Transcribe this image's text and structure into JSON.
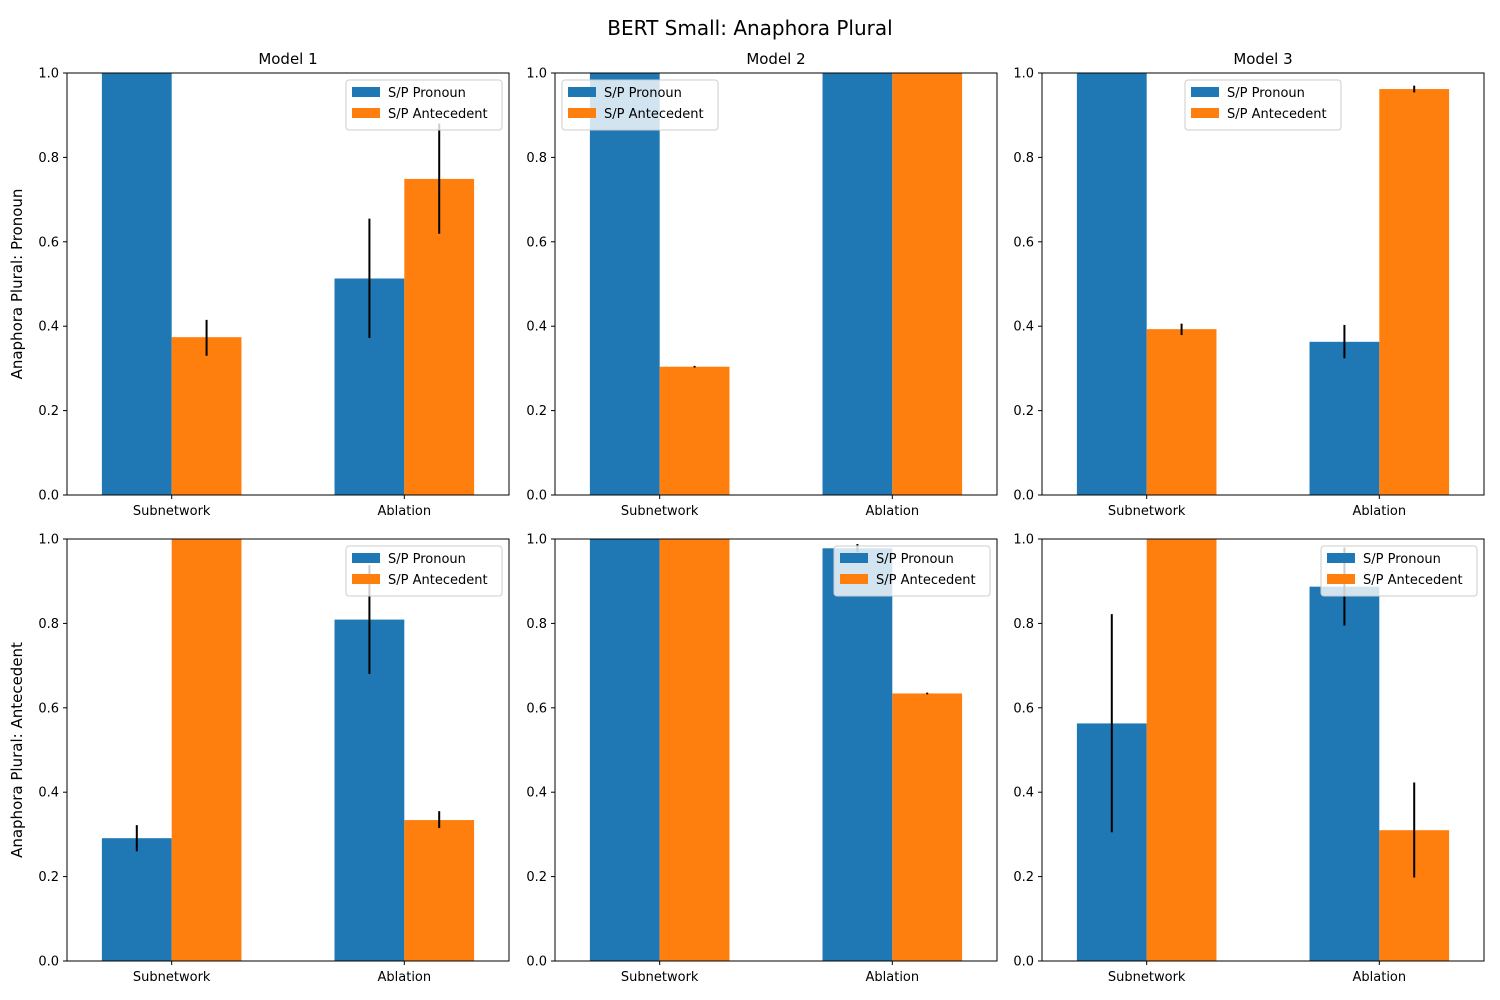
{
  "suptitle": "BERT Small: Anaphora Plural",
  "colors": {
    "pronoun": "#1f77b4",
    "antecedent": "#ff7f0e",
    "error": "#000000"
  },
  "chart_data": [
    {
      "type": "bar",
      "title": "Model 1",
      "ylabel": "Anaphora Plural: Pronoun",
      "categories": [
        "Subnetwork",
        "Ablation"
      ],
      "ylim": [
        0,
        1
      ],
      "yticks": [
        "0.0",
        "0.2",
        "0.4",
        "0.6",
        "0.8",
        "1.0"
      ],
      "legend_loc": "top-right",
      "series": [
        {
          "name": "S/P Pronoun",
          "values": [
            1.0,
            0.513
          ],
          "err_low": [
            1.0,
            0.372
          ],
          "err_high": [
            1.0,
            0.655
          ]
        },
        {
          "name": "S/P Antecedent",
          "values": [
            0.374,
            0.749
          ],
          "err_low": [
            0.33,
            0.619
          ],
          "err_high": [
            0.415,
            0.88
          ]
        }
      ]
    },
    {
      "type": "bar",
      "title": "Model 2",
      "ylabel": "",
      "categories": [
        "Subnetwork",
        "Ablation"
      ],
      "ylim": [
        0,
        1
      ],
      "yticks": [
        "0.0",
        "0.2",
        "0.4",
        "0.6",
        "0.8",
        "1.0"
      ],
      "legend_loc": "top-left",
      "series": [
        {
          "name": "S/P Pronoun",
          "values": [
            1.0,
            1.0
          ],
          "err_low": [
            1.0,
            1.0
          ],
          "err_high": [
            1.0,
            1.0
          ]
        },
        {
          "name": "S/P Antecedent",
          "values": [
            0.304,
            1.0
          ],
          "err_low": [
            0.302,
            1.0
          ],
          "err_high": [
            0.306,
            1.0
          ]
        }
      ]
    },
    {
      "type": "bar",
      "title": "Model 3",
      "ylabel": "",
      "categories": [
        "Subnetwork",
        "Ablation"
      ],
      "ylim": [
        0,
        1
      ],
      "yticks": [
        "0.0",
        "0.2",
        "0.4",
        "0.6",
        "0.8",
        "1.0"
      ],
      "legend_loc": "top-center",
      "series": [
        {
          "name": "S/P Pronoun",
          "values": [
            1.0,
            0.363
          ],
          "err_low": [
            1.0,
            0.324
          ],
          "err_high": [
            1.0,
            0.403
          ]
        },
        {
          "name": "S/P Antecedent",
          "values": [
            0.393,
            0.962
          ],
          "err_low": [
            0.379,
            0.954
          ],
          "err_high": [
            0.406,
            0.97
          ]
        }
      ]
    },
    {
      "type": "bar",
      "title": "",
      "ylabel": "Anaphora Plural: Antecedent",
      "categories": [
        "Subnetwork",
        "Ablation"
      ],
      "ylim": [
        0,
        1
      ],
      "yticks": [
        "0.0",
        "0.2",
        "0.4",
        "0.6",
        "0.8",
        "1.0"
      ],
      "legend_loc": "top-right",
      "series": [
        {
          "name": "S/P Pronoun",
          "values": [
            0.291,
            0.809
          ],
          "err_low": [
            0.26,
            0.68
          ],
          "err_high": [
            0.322,
            0.938
          ]
        },
        {
          "name": "S/P Antecedent",
          "values": [
            1.0,
            0.334
          ],
          "err_low": [
            1.0,
            0.315
          ],
          "err_high": [
            1.0,
            0.355
          ]
        }
      ]
    },
    {
      "type": "bar",
      "title": "",
      "ylabel": "",
      "categories": [
        "Subnetwork",
        "Ablation"
      ],
      "ylim": [
        0,
        1
      ],
      "yticks": [
        "0.0",
        "0.2",
        "0.4",
        "0.6",
        "0.8",
        "1.0"
      ],
      "legend_loc": "top-right",
      "series": [
        {
          "name": "S/P Pronoun",
          "values": [
            1.0,
            0.978
          ],
          "err_low": [
            1.0,
            0.969
          ],
          "err_high": [
            1.0,
            0.988
          ]
        },
        {
          "name": "S/P Antecedent",
          "values": [
            1.0,
            0.634
          ],
          "err_low": [
            1.0,
            0.632
          ],
          "err_high": [
            1.0,
            0.636
          ]
        }
      ]
    },
    {
      "type": "bar",
      "title": "",
      "ylabel": "",
      "categories": [
        "Subnetwork",
        "Ablation"
      ],
      "ylim": [
        0,
        1
      ],
      "yticks": [
        "0.0",
        "0.2",
        "0.4",
        "0.6",
        "0.8",
        "1.0"
      ],
      "legend_loc": "top-right",
      "series": [
        {
          "name": "S/P Pronoun",
          "values": [
            0.563,
            0.887
          ],
          "err_low": [
            0.305,
            0.795
          ],
          "err_high": [
            0.822,
            0.98
          ]
        },
        {
          "name": "S/P Antecedent",
          "values": [
            1.0,
            0.31
          ],
          "err_low": [
            1.0,
            0.198
          ],
          "err_high": [
            1.0,
            0.423
          ]
        }
      ]
    }
  ]
}
